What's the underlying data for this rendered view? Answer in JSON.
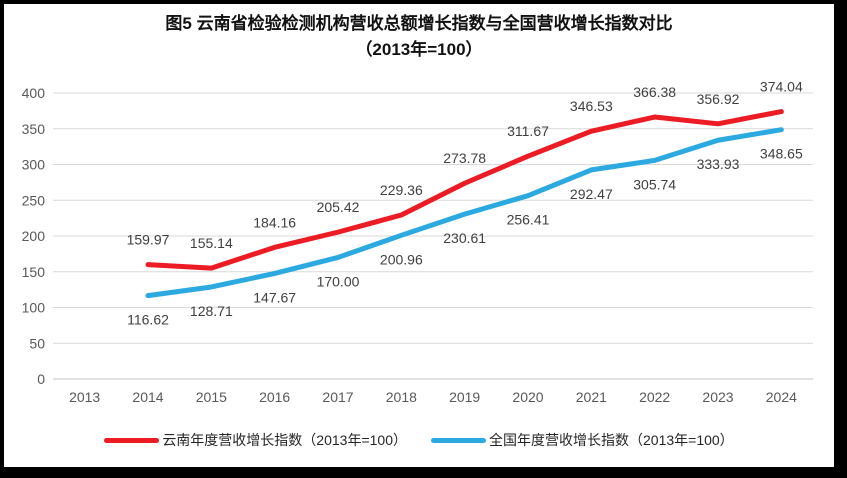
{
  "title": {
    "line1": "图5  云南省检验检测机构营收总额增长指数与全国营收增长指数对比",
    "line2": "（2013年=100）"
  },
  "chart_data": {
    "type": "line",
    "categories": [
      "2013",
      "2014",
      "2015",
      "2016",
      "2017",
      "2018",
      "2019",
      "2020",
      "2021",
      "2022",
      "2023",
      "2024"
    ],
    "series": [
      {
        "name": "云南年度营收增长指数（2013年=100）",
        "color": "#EC1B24",
        "label_position": "above",
        "values": [
          null,
          159.97,
          155.14,
          184.16,
          205.42,
          229.36,
          273.78,
          311.67,
          346.53,
          366.38,
          356.92,
          374.04
        ]
      },
      {
        "name": "全国年度营收增长指数（2013年=100）",
        "color": "#2BA9E0",
        "label_position": "below",
        "values": [
          null,
          116.62,
          128.71,
          147.67,
          170.0,
          200.96,
          230.61,
          256.41,
          292.47,
          305.74,
          333.93,
          348.65
        ]
      }
    ],
    "ylim": [
      0,
      400
    ],
    "ytick_step": 50,
    "grid": true,
    "legend_position": "bottom",
    "colors": {
      "gridline": "#D9D9D9",
      "axis_line": "#C6C6C6",
      "tick_label": "#595959",
      "data_label": "#404040",
      "title": "#111111"
    }
  }
}
